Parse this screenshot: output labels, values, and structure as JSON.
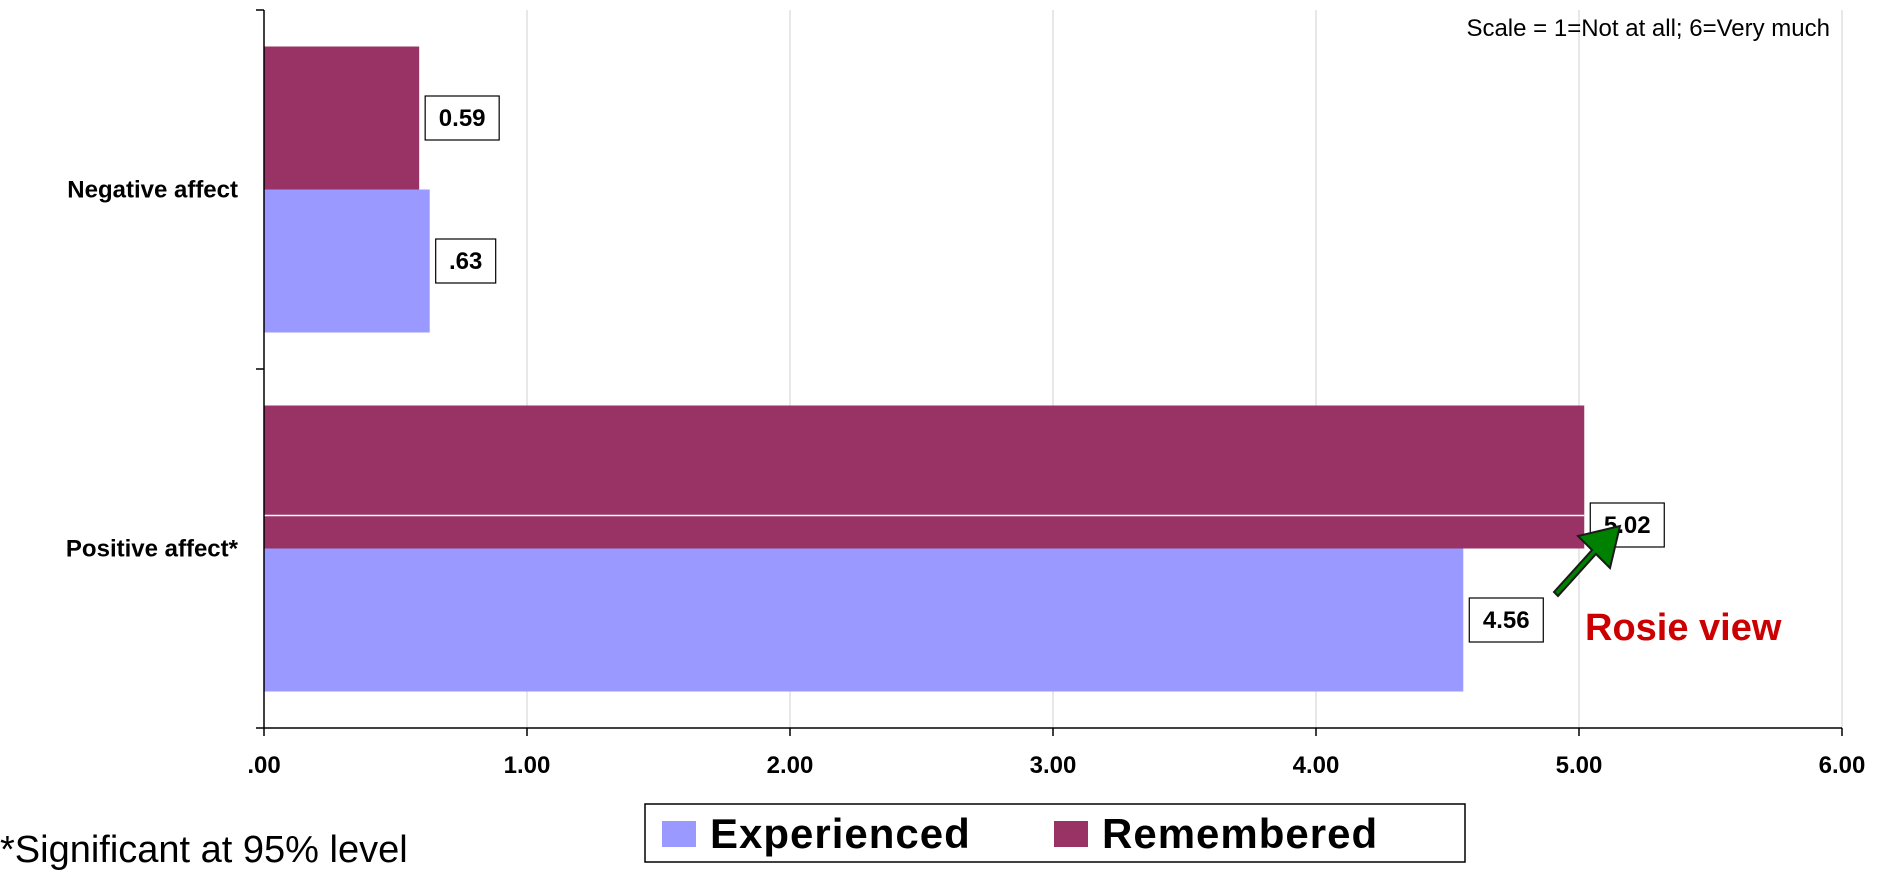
{
  "chart_data": {
    "type": "bar",
    "orientation": "horizontal",
    "categories": [
      "Negative affect",
      "Positive affect*"
    ],
    "series": [
      {
        "name": "Experienced",
        "values": [
          0.63,
          4.56
        ],
        "labels": [
          ".63",
          "4.56"
        ],
        "color": "#9999FF"
      },
      {
        "name": "Remembered",
        "values": [
          0.59,
          5.02
        ],
        "labels": [
          "0.59",
          "5.02"
        ],
        "color": "#993366"
      }
    ],
    "xlim": [
      0,
      6
    ],
    "xticks": [
      ".00",
      "1.00",
      "2.00",
      "3.00",
      "4.00",
      "5.00",
      "6.00"
    ],
    "grid": true,
    "legend_position": "bottom",
    "note": "Scale = 1=Not at all; 6=Very  much",
    "annotation": {
      "text": "Rosie view",
      "color": "#CC0000",
      "arrow_color": "#008000"
    },
    "footnote": "*Significant at 95% level"
  }
}
